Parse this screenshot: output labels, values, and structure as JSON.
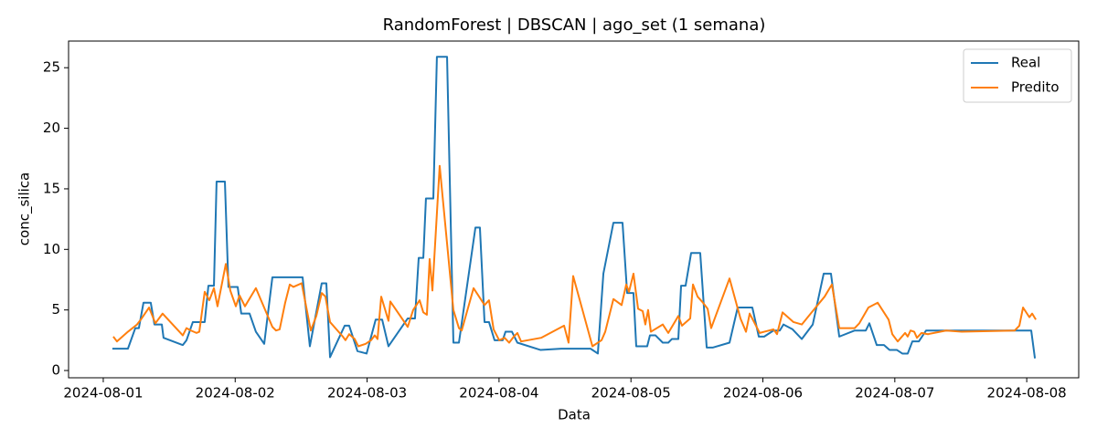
{
  "chart_data": {
    "type": "line",
    "title": "RandomForest | DBSCAN | ago_set (1 semana)",
    "x_label": "Data",
    "y_label": "conc_silica",
    "xlim": [
      19935.737,
      19943.394
    ],
    "ylim": [
      -0.6,
      27.2
    ],
    "xticks": [
      {
        "value": 19936,
        "label": "2024-08-01"
      },
      {
        "value": 19937,
        "label": "2024-08-02"
      },
      {
        "value": 19938,
        "label": "2024-08-03"
      },
      {
        "value": 19939,
        "label": "2024-08-04"
      },
      {
        "value": 19940,
        "label": "2024-08-05"
      },
      {
        "value": 19941,
        "label": "2024-08-06"
      },
      {
        "value": 19942,
        "label": "2024-08-07"
      },
      {
        "value": 19943,
        "label": "2024-08-08"
      }
    ],
    "yticks": [
      0,
      5,
      10,
      15,
      20,
      25
    ],
    "grid": false,
    "legend": "upper right",
    "series": [
      {
        "name": "Real",
        "color": "#1f77b4",
        "x": [
          19936.069,
          19936.187,
          19936.243,
          19936.27,
          19936.305,
          19936.36,
          19936.388,
          19936.444,
          19936.457,
          19936.603,
          19936.631,
          19936.679,
          19936.769,
          19936.797,
          19936.839,
          19936.859,
          19936.922,
          19936.949,
          19937.019,
          19937.046,
          19937.109,
          19937.157,
          19937.22,
          19937.282,
          19937.511,
          19937.566,
          19937.656,
          19937.691,
          19937.719,
          19937.83,
          19937.864,
          19937.927,
          19937.996,
          19938.065,
          19938.114,
          19938.162,
          19938.308,
          19938.363,
          19938.391,
          19938.426,
          19938.446,
          19938.502,
          19938.529,
          19938.606,
          19938.654,
          19938.696,
          19938.821,
          19938.855,
          19938.89,
          19938.924,
          19938.966,
          19939.028,
          19939.049,
          19939.098,
          19939.139,
          19939.313,
          19939.472,
          19939.694,
          19939.749,
          19939.791,
          19939.867,
          19939.936,
          19939.971,
          19940.019,
          19940.04,
          19940.123,
          19940.144,
          19940.186,
          19940.241,
          19940.283,
          19940.31,
          19940.359,
          19940.38,
          19940.414,
          19940.456,
          19940.525,
          19940.574,
          19940.622,
          19940.747,
          19940.809,
          19940.92,
          19940.969,
          19941.01,
          19941.08,
          19941.128,
          19941.156,
          19941.225,
          19941.295,
          19941.378,
          19941.461,
          19941.516,
          19941.579,
          19941.696,
          19941.78,
          19941.807,
          19941.863,
          19941.918,
          19941.96,
          19942.015,
          19942.057,
          19942.098,
          19942.133,
          19942.182,
          19942.237,
          19942.59,
          19943.034,
          19943.062
        ],
        "values": [
          1.8,
          1.8,
          3.5,
          3.5,
          5.6,
          5.6,
          3.8,
          3.8,
          2.7,
          2.1,
          2.5,
          4.0,
          4.0,
          7.0,
          7.0,
          15.6,
          15.6,
          6.9,
          6.9,
          4.7,
          4.7,
          3.2,
          2.2,
          7.7,
          7.7,
          2.0,
          7.2,
          7.2,
          1.1,
          3.7,
          3.7,
          1.6,
          1.4,
          4.2,
          4.2,
          2.0,
          4.3,
          4.3,
          9.3,
          9.3,
          14.2,
          14.2,
          25.9,
          25.9,
          2.3,
          2.3,
          11.8,
          11.8,
          4.0,
          4.0,
          2.5,
          2.5,
          3.2,
          3.2,
          2.3,
          1.7,
          1.8,
          1.8,
          1.4,
          8.0,
          12.2,
          12.2,
          6.4,
          6.4,
          2.0,
          2.0,
          2.9,
          2.9,
          2.3,
          2.3,
          2.6,
          2.6,
          7.0,
          7.0,
          9.7,
          9.7,
          1.9,
          1.9,
          2.3,
          5.2,
          5.2,
          2.8,
          2.8,
          3.3,
          3.3,
          3.8,
          3.4,
          2.6,
          3.8,
          8.0,
          8.0,
          2.8,
          3.3,
          3.3,
          3.9,
          2.1,
          2.1,
          1.7,
          1.7,
          1.4,
          1.4,
          2.4,
          2.4,
          3.3,
          3.3,
          3.3,
          1.0
        ]
      },
      {
        "name": "Predito",
        "color": "#ff7f0e",
        "x": [
          19936.076,
          19936.104,
          19936.187,
          19936.256,
          19936.291,
          19936.347,
          19936.395,
          19936.45,
          19936.603,
          19936.631,
          19936.665,
          19936.707,
          19936.728,
          19936.769,
          19936.804,
          19936.839,
          19936.866,
          19936.929,
          19936.963,
          19937.005,
          19937.033,
          19937.074,
          19937.157,
          19937.282,
          19937.31,
          19937.337,
          19937.379,
          19937.414,
          19937.441,
          19937.504,
          19937.573,
          19937.615,
          19937.656,
          19937.684,
          19937.719,
          19937.816,
          19937.836,
          19937.864,
          19937.906,
          19937.933,
          19937.989,
          19938.03,
          19938.058,
          19938.079,
          19938.107,
          19938.162,
          19938.176,
          19938.308,
          19938.349,
          19938.398,
          19938.426,
          19938.453,
          19938.474,
          19938.495,
          19938.55,
          19938.606,
          19938.654,
          19938.696,
          19938.717,
          19938.807,
          19938.855,
          19938.89,
          19938.924,
          19938.959,
          19939.001,
          19939.042,
          19939.077,
          19939.112,
          19939.139,
          19939.167,
          19939.319,
          19939.493,
          19939.527,
          19939.562,
          19939.708,
          19939.777,
          19939.805,
          19939.867,
          19939.929,
          19939.964,
          19939.985,
          19940.019,
          19940.054,
          19940.089,
          19940.109,
          19940.13,
          19940.151,
          19940.241,
          19940.283,
          19940.359,
          19940.387,
          19940.449,
          19940.47,
          19940.505,
          19940.546,
          19940.581,
          19940.608,
          19940.747,
          19940.83,
          19940.872,
          19940.9,
          19940.976,
          19941.01,
          19941.08,
          19941.107,
          19941.149,
          19941.232,
          19941.295,
          19941.392,
          19941.468,
          19941.523,
          19941.579,
          19941.696,
          19941.731,
          19941.8,
          19941.87,
          19941.953,
          19941.981,
          19942.022,
          19942.078,
          19942.098,
          19942.119,
          19942.147,
          19942.168,
          19942.202,
          19942.251,
          19942.389,
          19942.507,
          19942.909,
          19942.944,
          19942.972,
          19943.02,
          19943.041,
          19943.069
        ],
        "values": [
          2.8,
          2.4,
          3.2,
          3.8,
          4.3,
          5.2,
          3.9,
          4.7,
          2.9,
          3.5,
          3.3,
          3.1,
          3.2,
          6.5,
          5.8,
          6.8,
          5.3,
          8.8,
          6.6,
          5.3,
          6.2,
          5.3,
          6.8,
          3.6,
          3.3,
          3.4,
          5.6,
          7.1,
          6.9,
          7.2,
          3.3,
          4.5,
          6.4,
          6.1,
          4.0,
          2.8,
          2.5,
          3.0,
          2.6,
          2.0,
          2.2,
          2.5,
          2.9,
          2.6,
          6.1,
          4.1,
          5.7,
          3.6,
          5.0,
          5.8,
          4.8,
          4.6,
          9.2,
          6.6,
          16.9,
          10.5,
          5.0,
          3.5,
          3.3,
          6.8,
          6.0,
          5.4,
          5.8,
          3.4,
          2.5,
          2.7,
          2.3,
          2.8,
          3.1,
          2.4,
          2.7,
          3.7,
          2.3,
          7.8,
          2.0,
          2.5,
          3.2,
          5.9,
          5.4,
          7.1,
          6.5,
          8.0,
          5.1,
          4.9,
          3.8,
          5.0,
          3.2,
          3.8,
          3.1,
          4.5,
          3.7,
          4.3,
          7.1,
          6.1,
          5.6,
          5.1,
          3.5,
          7.6,
          4.3,
          3.2,
          4.7,
          3.1,
          3.2,
          3.4,
          3.0,
          4.8,
          4.0,
          3.8,
          5.1,
          6.1,
          7.1,
          3.5,
          3.5,
          3.9,
          5.2,
          5.6,
          4.2,
          3.0,
          2.4,
          3.1,
          2.8,
          3.3,
          3.2,
          2.7,
          3.1,
          3.0,
          3.3,
          3.2,
          3.3,
          3.7,
          5.2,
          4.4,
          4.7,
          4.2
        ]
      }
    ]
  }
}
